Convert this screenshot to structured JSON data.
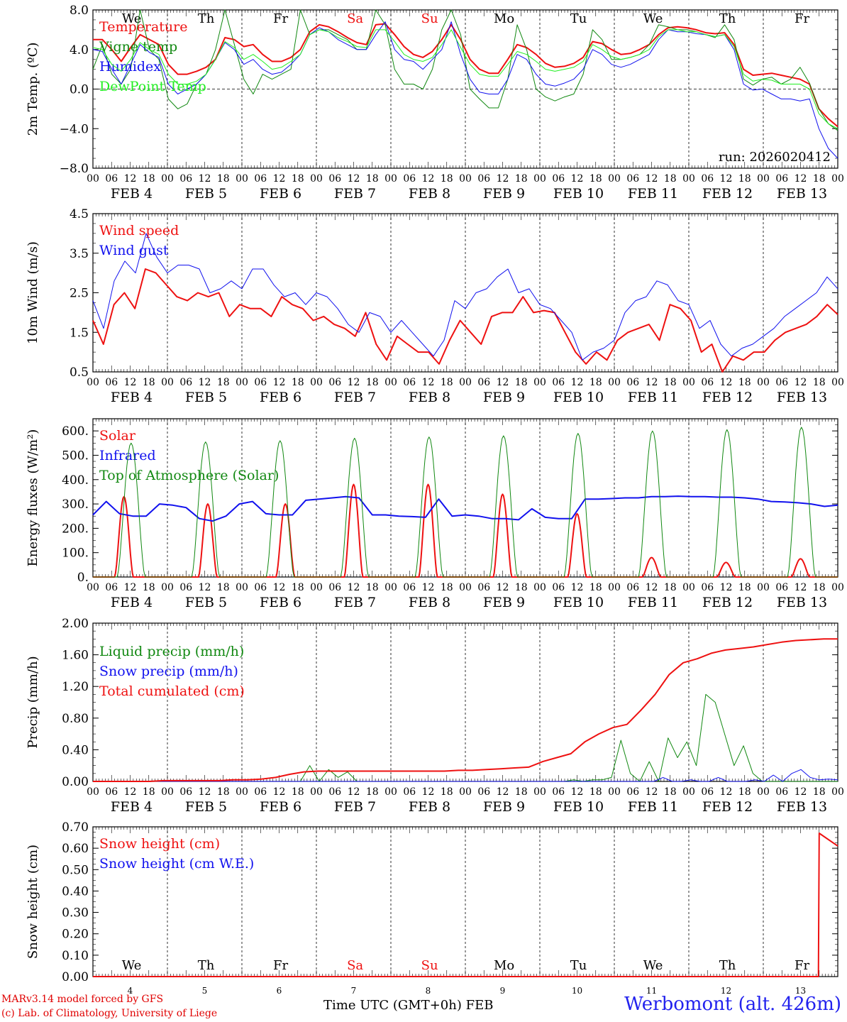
{
  "days": [
    4,
    5,
    6,
    7,
    8,
    9,
    10,
    11,
    12,
    13
  ],
  "weekdays": [
    "We",
    "Th",
    "Fr",
    "Sa",
    "Su",
    "Mo",
    "Tu",
    "We",
    "Th",
    "Fr"
  ],
  "weekend_weekdays": [
    "Sa",
    "Su"
  ],
  "month": "FEB",
  "hour_labels": [
    "00",
    "06",
    "12",
    "18"
  ],
  "colors": {
    "red": "#ee1111",
    "green": "#118811",
    "blue": "#1111ee",
    "lightgreen": "#22ee22",
    "black": "#000000"
  },
  "chart_data": [
    {
      "id": "temperature",
      "type": "line",
      "ylabel": "2m Temp. (ºC)",
      "ylim": [
        -8,
        8
      ],
      "yticks": [
        -8,
        -4,
        0,
        4,
        8
      ],
      "ytick_labels": [
        "−8.0",
        "−4.0",
        "0.0",
        "4.0",
        "8.0"
      ],
      "show_weekdays": true,
      "annotation": "run: 2026020412",
      "zero_line": true,
      "series": [
        {
          "name": "Temperature",
          "color": "red",
          "width": 2,
          "values": [
            5,
            5,
            4,
            2.8,
            4.2,
            5.5,
            5,
            4.5,
            2.5,
            1.5,
            1.5,
            1.8,
            2.2,
            3,
            5.2,
            5,
            4.3,
            4.5,
            3.5,
            2.8,
            2.8,
            3.2,
            4,
            5.8,
            6.5,
            6.3,
            5.8,
            5.2,
            4.7,
            4.5,
            6.5,
            6.6,
            5.5,
            4.3,
            3.5,
            3.2,
            3.8,
            5,
            6.5,
            5,
            3,
            2,
            1.6,
            1.6,
            3,
            4.5,
            4.2,
            3.5,
            2.6,
            2.2,
            2.3,
            2.6,
            3.2,
            4.8,
            4.6,
            4,
            3.5,
            3.6,
            4,
            4.5,
            5.5,
            6.2,
            6.3,
            6.2,
            6,
            5.7,
            5.6,
            5.7,
            4.5,
            2,
            1.4,
            1.5,
            1.6,
            1.4,
            1.2,
            1,
            0.5,
            -2,
            -3,
            -3.8
          ]
        },
        {
          "name": "Vigne temp",
          "color": "green",
          "width": 1,
          "values": [
            2,
            4.5,
            1.5,
            0.5,
            2,
            8,
            4,
            3,
            -1,
            -2,
            -1.5,
            0.5,
            1.5,
            4,
            8,
            4.5,
            1,
            -0.5,
            1.5,
            1,
            1.5,
            2,
            8,
            5.5,
            6,
            6,
            5.5,
            5,
            4,
            4,
            8,
            6.5,
            2,
            0.5,
            0.5,
            0,
            2,
            6,
            8,
            5.5,
            0,
            -1,
            -1.9,
            -1.9,
            1,
            6.5,
            4,
            0,
            -0.8,
            -1.2,
            -0.8,
            -0.5,
            1.5,
            6,
            5,
            3,
            3,
            3.2,
            3.5,
            4.5,
            6.5,
            6.3,
            6,
            6,
            5.8,
            5.5,
            5.2,
            6.5,
            5,
            1,
            0.4,
            1,
            1.2,
            0.5,
            1,
            2.2,
            0.6,
            -2,
            -3.5,
            -4.2
          ]
        },
        {
          "name": "Humidex",
          "color": "blue",
          "width": 1,
          "values": [
            4,
            3.8,
            2,
            0.5,
            2.5,
            4.5,
            3.7,
            3.2,
            0.5,
            -0.5,
            0,
            0.5,
            1.5,
            3,
            4.7,
            4,
            2.5,
            3,
            2,
            1.5,
            1.7,
            2.5,
            3.5,
            5.5,
            6.2,
            5.8,
            5,
            4.5,
            4,
            4,
            5.5,
            6.8,
            4,
            3,
            2.8,
            2,
            3,
            4,
            6.8,
            3.5,
            1,
            -0.3,
            -0.5,
            -0.5,
            1,
            3.5,
            3,
            1.5,
            0.5,
            0.3,
            0.6,
            1,
            2,
            4,
            3.5,
            2.5,
            2.2,
            2.5,
            3,
            3.5,
            5,
            6,
            5.8,
            5.8,
            5.6,
            5.5,
            5.3,
            5.5,
            4,
            0.5,
            -0.1,
            0,
            -0.5,
            -1,
            -1,
            -1.2,
            -1,
            -4,
            -6,
            -7
          ]
        },
        {
          "name": "DewPoint Temp",
          "color": "lightgreen",
          "width": 1,
          "values": [
            4.2,
            4,
            2.5,
            1.8,
            3,
            4.7,
            4,
            3.5,
            1.5,
            0.5,
            0.5,
            0.8,
            1.5,
            3,
            4.8,
            4.2,
            3,
            3.5,
            2.8,
            2,
            2.2,
            2.8,
            3.5,
            5.5,
            6,
            5.8,
            5.2,
            4.8,
            4.3,
            4.2,
            6,
            6,
            4.8,
            3.5,
            3,
            2.8,
            3.2,
            4.5,
            6,
            4.2,
            2.5,
            1.5,
            1.3,
            1.3,
            2.5,
            3.8,
            3.5,
            2.8,
            2,
            1.8,
            2,
            2.2,
            2.8,
            4.5,
            4,
            3.3,
            3,
            3.2,
            3.5,
            4,
            5.3,
            6,
            6,
            5.8,
            5.8,
            5.5,
            5.3,
            5.5,
            4.3,
            1.5,
            0.8,
            1,
            0.9,
            0.5,
            0.5,
            0.5,
            0,
            -2.5,
            -3.5,
            -4
          ]
        }
      ]
    },
    {
      "id": "wind",
      "type": "line",
      "ylabel": "10m Wind (m/s)",
      "ylim": [
        0.5,
        4.5
      ],
      "yticks": [
        0.5,
        1.5,
        2.5,
        3.5,
        4.5
      ],
      "ytick_labels": [
        "0.5",
        "1.5",
        "2.5",
        "3.5",
        "4.5"
      ],
      "series": [
        {
          "name": "Wind speed",
          "color": "red",
          "width": 2,
          "values": [
            1.8,
            1.2,
            2.2,
            2.5,
            2.1,
            3.1,
            3,
            2.7,
            2.4,
            2.3,
            2.5,
            2.4,
            2.5,
            1.9,
            2.2,
            2.1,
            2.1,
            1.9,
            2.4,
            2.2,
            2.1,
            1.8,
            1.9,
            1.7,
            1.6,
            1.4,
            2,
            1.2,
            0.8,
            1.4,
            1.2,
            1,
            1,
            0.7,
            1.3,
            1.8,
            1.5,
            1.2,
            1.9,
            2,
            2,
            2.4,
            2,
            2.05,
            2,
            1.5,
            1,
            0.7,
            1,
            0.8,
            1.3,
            1.5,
            1.6,
            1.7,
            1.3,
            2.2,
            2.1,
            1.8,
            1,
            1.2,
            0.5,
            0.9,
            0.8,
            1,
            1,
            1.3,
            1.5,
            1.6,
            1.7,
            1.9,
            2.2,
            1.95
          ]
        },
        {
          "name": "Wind gust",
          "color": "blue",
          "width": 1,
          "values": [
            2.3,
            1.6,
            2.8,
            3.3,
            3,
            4,
            3.4,
            3,
            3.2,
            3.2,
            3.1,
            2.5,
            2.6,
            2.8,
            2.6,
            3.1,
            3.1,
            2.7,
            2.4,
            2.5,
            2.2,
            2.5,
            2.4,
            2.1,
            1.7,
            1.5,
            2,
            1.9,
            1.5,
            1.8,
            1.5,
            1.2,
            0.9,
            1.3,
            2.3,
            2.1,
            2.5,
            2.6,
            2.9,
            3.1,
            2.5,
            2.6,
            2.2,
            2.1,
            1.8,
            1.5,
            0.8,
            1,
            1.1,
            1.3,
            2,
            2.3,
            2.4,
            2.8,
            2.7,
            2.3,
            2.2,
            1.6,
            1.8,
            1.2,
            0.9,
            1.1,
            1.2,
            1.4,
            1.6,
            1.9,
            2.1,
            2.3,
            2.5,
            2.9,
            2.6
          ]
        }
      ]
    },
    {
      "id": "energy",
      "type": "line",
      "ylabel": "Energy fluxes (W/m²)",
      "ylim": [
        0,
        650
      ],
      "yticks": [
        0,
        100,
        200,
        300,
        400,
        500,
        600
      ],
      "ytick_labels": [
        "0.",
        "100.",
        "200.",
        "300.",
        "400.",
        "500.",
        "600."
      ],
      "series": [
        {
          "name": "Solar",
          "color": "red",
          "width": 2,
          "peaks": [
            330,
            300,
            300,
            380,
            380,
            340,
            260,
            80,
            60,
            75
          ],
          "peak_hours": [
            10,
            13,
            14,
            12,
            12,
            12,
            12,
            12,
            12,
            12
          ]
        },
        {
          "name": "Infrared",
          "color": "blue",
          "width": 2,
          "values": [
            255,
            310,
            260,
            250,
            250,
            300,
            295,
            285,
            240,
            230,
            250,
            300,
            310,
            260,
            255,
            255,
            315,
            320,
            325,
            330,
            325,
            255,
            255,
            250,
            248,
            245,
            320,
            250,
            255,
            250,
            240,
            240,
            235,
            280,
            245,
            240,
            240,
            320,
            320,
            322,
            325,
            325,
            330,
            330,
            332,
            330,
            330,
            328,
            328,
            325,
            320,
            310,
            308,
            305,
            300,
            290,
            295
          ]
        },
        {
          "name": "Top of Atmosphere (Solar)",
          "color": "green",
          "width": 1,
          "peaks": [
            550,
            555,
            560,
            570,
            575,
            580,
            590,
            600,
            605,
            615
          ]
        }
      ]
    },
    {
      "id": "precip",
      "type": "line",
      "ylabel": "Precip (mm/h)",
      "ylim": [
        0,
        2.0
      ],
      "yticks": [
        0,
        0.4,
        0.8,
        1.2,
        1.6,
        2.0
      ],
      "ytick_labels": [
        "0.00",
        "0.40",
        "0.80",
        "1.20",
        "1.60",
        "2.00"
      ],
      "series": [
        {
          "name": "Liquid precip (mm/h)",
          "color": "green",
          "width": 1,
          "values": [
            0,
            0,
            0,
            0,
            0,
            0,
            0,
            0,
            0,
            0,
            0,
            0,
            0,
            0,
            0,
            0,
            0,
            0,
            0,
            0,
            0,
            0,
            0,
            0.2,
            0,
            0.15,
            0.05,
            0.12,
            0,
            0,
            0,
            0,
            0,
            0,
            0,
            0,
            0,
            0,
            0,
            0,
            0,
            0,
            0,
            0,
            0,
            0,
            0,
            0,
            0,
            0,
            0,
            0.02,
            0,
            0.02,
            0.02,
            0.05,
            0.52,
            0.1,
            0,
            0.25,
            0,
            0.55,
            0.3,
            0.5,
            0.2,
            1.1,
            1.0,
            0.6,
            0.2,
            0.45,
            0.1,
            0,
            0,
            0,
            0,
            0,
            0,
            0,
            0,
            0
          ]
        },
        {
          "name": "Snow precip (mm/h)",
          "color": "blue",
          "width": 1,
          "values": [
            0,
            0,
            0,
            0,
            0,
            0,
            0,
            0,
            0,
            0,
            0,
            0,
            0,
            0,
            0,
            0,
            0,
            0,
            0,
            0,
            0,
            0,
            0,
            0,
            0,
            0,
            0,
            0,
            0,
            0,
            0,
            0,
            0,
            0,
            0,
            0,
            0,
            0,
            0,
            0,
            0,
            0,
            0,
            0,
            0,
            0,
            0,
            0,
            0,
            0,
            0,
            0,
            0,
            0,
            0,
            0,
            0,
            0,
            0,
            0,
            0,
            0,
            0.05,
            0,
            0,
            0.02,
            0,
            0,
            0.05,
            0,
            0,
            0,
            0.02,
            0,
            0.08,
            0,
            0.1,
            0.15,
            0.05,
            0.02,
            0.03,
            0.02
          ]
        },
        {
          "name": "Total cumulated (cm)",
          "color": "red",
          "width": 2,
          "values": [
            0,
            0,
            0,
            0,
            0,
            0.01,
            0.01,
            0.01,
            0.01,
            0.01,
            0.02,
            0.02,
            0.03,
            0.05,
            0.09,
            0.12,
            0.13,
            0.13,
            0.13,
            0.13,
            0.13,
            0.13,
            0.13,
            0.13,
            0.13,
            0.13,
            0.14,
            0.14,
            0.15,
            0.16,
            0.17,
            0.18,
            0.25,
            0.3,
            0.35,
            0.5,
            0.6,
            0.68,
            0.72,
            0.9,
            1.1,
            1.35,
            1.5,
            1.55,
            1.62,
            1.66,
            1.68,
            1.7,
            1.73,
            1.76,
            1.78,
            1.79,
            1.8,
            1.8
          ]
        }
      ]
    },
    {
      "id": "snow",
      "type": "line",
      "ylabel": "Snow height (cm)",
      "ylim": [
        0,
        0.7
      ],
      "yticks": [
        0,
        0.1,
        0.2,
        0.3,
        0.4,
        0.5,
        0.6,
        0.7
      ],
      "ytick_labels": [
        "0.00",
        "0.10",
        "0.20",
        "0.30",
        "0.40",
        "0.50",
        "0.60",
        "0.70"
      ],
      "weekdays_inside": true,
      "series": [
        {
          "name": "Snow height (cm)",
          "color": "red",
          "width": 2,
          "points": [
            [
              0,
              0
            ],
            [
              9.74,
              0
            ],
            [
              9.75,
              0.67
            ],
            [
              10,
              0.61
            ]
          ]
        },
        {
          "name": "Snow height (cm W.E.)",
          "color": "blue",
          "width": 1,
          "points": []
        }
      ]
    }
  ],
  "footer": {
    "credit_line1": "MARv3.14 model forced by GFS",
    "credit_line2": "(c) Lab. of Climatology, University of Liege",
    "xtitle": "Time UTC (GMT+0h) FEB",
    "station": "Werbomont (alt. 426m)"
  }
}
